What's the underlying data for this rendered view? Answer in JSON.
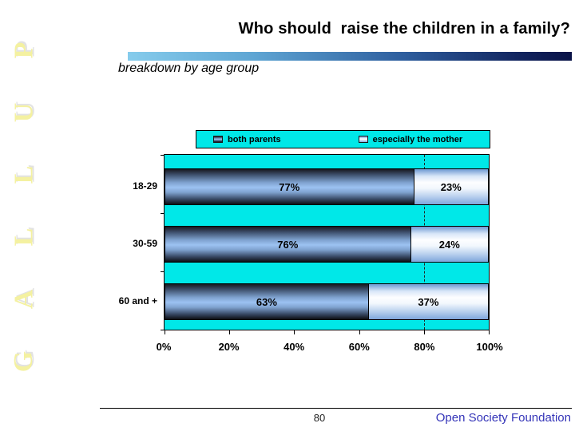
{
  "slide": {
    "logo_text": "GALLUP",
    "logo_letters": [
      "G",
      "A",
      "L",
      "L",
      "U",
      "P"
    ],
    "title": "Who should  raise the children in a family?",
    "subtitle": "breakdown by age group",
    "page_number": "80",
    "footer_right": "Open Society Foundation"
  },
  "chart_data": {
    "type": "bar",
    "orientation": "horizontal",
    "stacked": true,
    "title": "Who should  raise the children in a family?",
    "subtitle": "breakdown by age group",
    "categories": [
      "18-29",
      "30-59",
      "60 and +"
    ],
    "series": [
      {
        "name": "both parents",
        "values": [
          77,
          76,
          63
        ],
        "labels": [
          "77%",
          "76%",
          "63%"
        ]
      },
      {
        "name": "especially the mother",
        "values": [
          23,
          24,
          37
        ],
        "labels": [
          "23%",
          "24%",
          "37%"
        ]
      }
    ],
    "x_ticks": [
      "0%",
      "20%",
      "40%",
      "60%",
      "80%",
      "100%"
    ],
    "xlim": [
      0,
      100
    ],
    "gridline_at": 80,
    "legend_position": "top",
    "plot_background": "#00E8E8"
  },
  "colors": {
    "plot_bg_cyan": "#00E8E8",
    "bar_dark_blue_mid": "#9CC2F2",
    "bar_light_white_mid": "#FDFEFF",
    "title_rule_start": "#86CCEC",
    "title_rule_end": "#0A1348",
    "logo_yellow": "#F4F1A1",
    "footer_blue": "#3434B8"
  }
}
